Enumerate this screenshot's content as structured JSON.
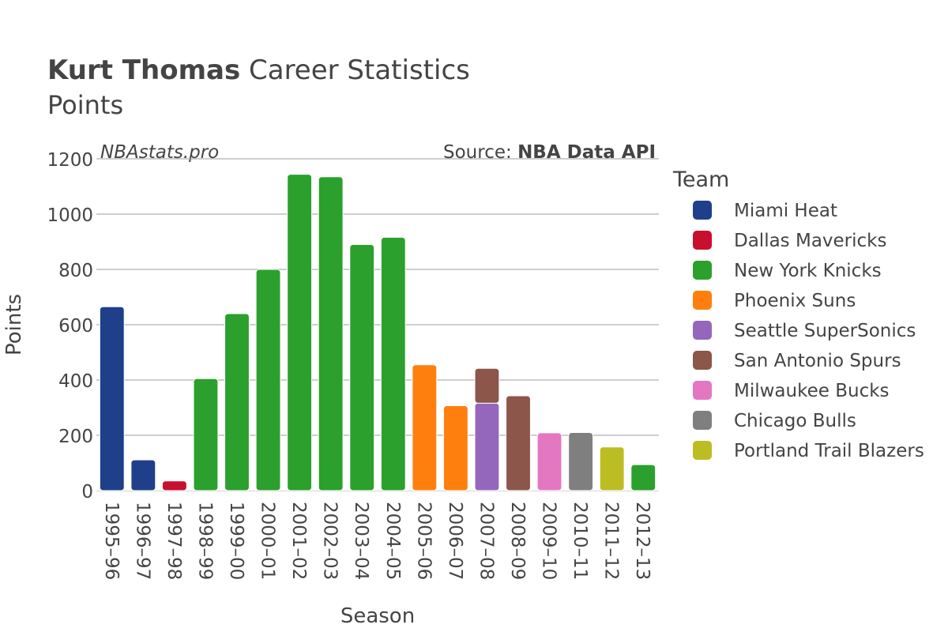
{
  "header": {
    "title_bold": "Kurt Thomas",
    "title_rest": "Career Statistics",
    "subtitle": "Points",
    "watermark": "NBAstats.pro",
    "source_prefix": "Source: ",
    "source_bold": "NBA Data API"
  },
  "chart_data": {
    "type": "bar",
    "stacked": true,
    "xlabel": "Season",
    "ylabel": "Points",
    "ylim": [
      0,
      1200
    ],
    "yticks": [
      0,
      200,
      400,
      600,
      800,
      1000,
      1200
    ],
    "grid": true,
    "legend_title": "Team",
    "legend_position": "right",
    "categories": [
      "1995–96",
      "1996–97",
      "1997–98",
      "1998–99",
      "1999–00",
      "2000–01",
      "2001–02",
      "2002–03",
      "2003–04",
      "2004–05",
      "2005–06",
      "2006–07",
      "2007–08",
      "2008–09",
      "2009–10",
      "2010–11",
      "2011–12",
      "2012–13"
    ],
    "series": [
      {
        "name": "Miami Heat",
        "color": "#1f3f8a",
        "values": [
          665,
          111,
          null,
          null,
          null,
          null,
          null,
          null,
          null,
          null,
          null,
          null,
          null,
          null,
          null,
          null,
          null,
          null
        ]
      },
      {
        "name": "Dallas Mavericks",
        "color": "#c8102e",
        "values": [
          null,
          null,
          35,
          null,
          null,
          null,
          null,
          null,
          null,
          null,
          null,
          null,
          null,
          null,
          null,
          null,
          null,
          null
        ]
      },
      {
        "name": "New York Knicks",
        "color": "#2ca02c",
        "values": [
          null,
          null,
          null,
          405,
          640,
          800,
          1144,
          1135,
          890,
          916,
          null,
          null,
          null,
          null,
          null,
          null,
          null,
          94
        ]
      },
      {
        "name": "Phoenix Suns",
        "color": "#ff7f0e",
        "values": [
          null,
          null,
          null,
          null,
          null,
          null,
          null,
          null,
          null,
          null,
          455,
          307,
          null,
          null,
          null,
          null,
          null,
          null
        ]
      },
      {
        "name": "Seattle SuperSonics",
        "color": "#9467bd",
        "values": [
          null,
          null,
          null,
          null,
          null,
          null,
          null,
          null,
          null,
          null,
          null,
          null,
          316,
          null,
          null,
          null,
          null,
          null
        ]
      },
      {
        "name": "San Antonio Spurs",
        "color": "#8c564b",
        "values": [
          null,
          null,
          null,
          null,
          null,
          null,
          null,
          null,
          null,
          null,
          null,
          null,
          126,
          343,
          null,
          null,
          null,
          null
        ]
      },
      {
        "name": "Milwaukee Bucks",
        "color": "#e377c2",
        "values": [
          null,
          null,
          null,
          null,
          null,
          null,
          null,
          null,
          null,
          null,
          null,
          null,
          null,
          null,
          209,
          null,
          null,
          null
        ]
      },
      {
        "name": "Chicago Bulls",
        "color": "#7f7f7f",
        "values": [
          null,
          null,
          null,
          null,
          null,
          null,
          null,
          null,
          null,
          null,
          null,
          null,
          null,
          null,
          null,
          210,
          null,
          null
        ]
      },
      {
        "name": "Portland Trail Blazers",
        "color": "#bcbd22",
        "values": [
          null,
          null,
          null,
          null,
          null,
          null,
          null,
          null,
          null,
          null,
          null,
          null,
          null,
          null,
          null,
          null,
          158,
          null
        ]
      }
    ]
  }
}
